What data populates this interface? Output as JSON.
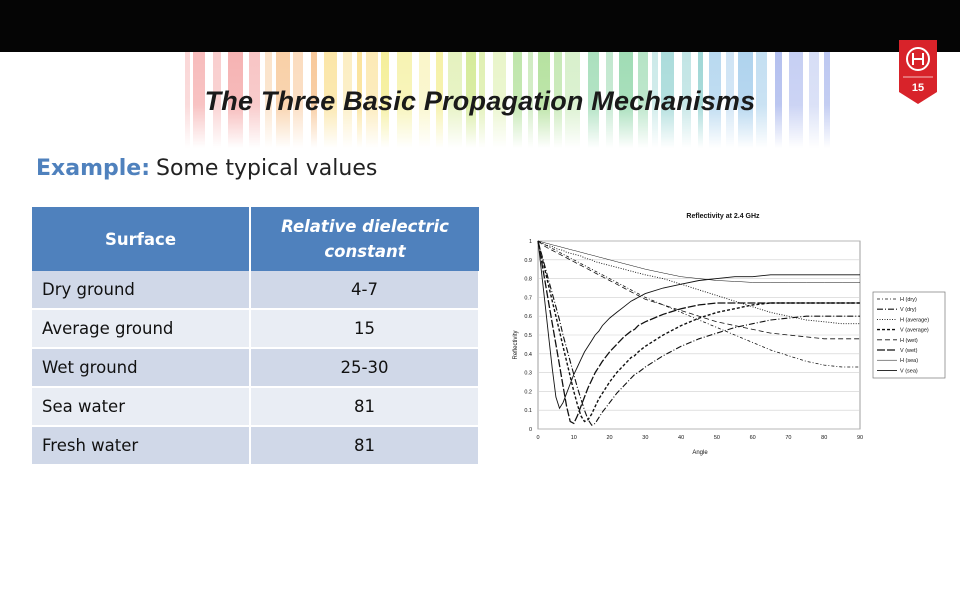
{
  "slide": {
    "title": "The Three Basic Propagation Mechanisms",
    "page_number": "15",
    "subtitle_lead": "Example:",
    "subtitle_text": "Some typical values",
    "accent_color": "#4f81bd",
    "badge_color": "#d8232a"
  },
  "table": {
    "headers": [
      "Surface",
      "Relative dielectric constant"
    ],
    "rows": [
      [
        "Dry ground",
        "4-7"
      ],
      [
        "Average ground",
        "15"
      ],
      [
        "Wet ground",
        "25-30"
      ],
      [
        "Sea water",
        "81"
      ],
      [
        "Fresh water",
        "81"
      ]
    ]
  },
  "chart_data": {
    "type": "line",
    "title": "Reflectivity at 2.4 GHz",
    "xlabel": "Angle",
    "ylabel": "Reflectivity",
    "xlim": [
      0,
      90
    ],
    "ylim": [
      0,
      1
    ],
    "xticks": [
      "0",
      "10",
      "20",
      "30",
      "40",
      "50",
      "60",
      "70",
      "80",
      "90"
    ],
    "yticks": [
      "0",
      "0.1",
      "0.2",
      "0.3",
      "0.4",
      "0.5",
      "0.6",
      "0.7",
      "0.8",
      "0.9",
      "1"
    ],
    "grid": true,
    "legend": "right",
    "x": [
      0,
      1,
      2,
      3,
      4,
      5,
      6,
      7,
      8,
      9,
      10,
      11,
      12,
      13,
      14,
      15,
      16,
      17,
      18,
      20,
      22,
      24,
      26,
      27,
      28,
      30,
      35,
      40,
      45,
      50,
      55,
      60,
      65,
      70,
      75,
      80,
      85,
      90
    ],
    "series": [
      {
        "name": "H (dry)",
        "values": [
          1,
          0.99,
          0.98,
          0.97,
          0.96,
          0.95,
          0.94,
          0.93,
          0.92,
          0.91,
          0.9,
          0.89,
          0.88,
          0.87,
          0.86,
          0.85,
          0.84,
          0.83,
          0.82,
          0.8,
          0.78,
          0.76,
          0.74,
          0.73,
          0.72,
          0.7,
          0.66,
          0.62,
          0.58,
          0.54,
          0.5,
          0.46,
          0.42,
          0.39,
          0.36,
          0.34,
          0.33,
          0.33
        ]
      },
      {
        "name": "V (dry)",
        "values": [
          1,
          0.93,
          0.86,
          0.79,
          0.72,
          0.65,
          0.58,
          0.5,
          0.43,
          0.36,
          0.29,
          0.22,
          0.16,
          0.1,
          0.05,
          0.02,
          0.03,
          0.06,
          0.09,
          0.14,
          0.19,
          0.23,
          0.27,
          0.29,
          0.3,
          0.33,
          0.39,
          0.44,
          0.48,
          0.51,
          0.54,
          0.56,
          0.58,
          0.59,
          0.6,
          0.6,
          0.6,
          0.6
        ]
      },
      {
        "name": "H (average)",
        "values": [
          1,
          0.99,
          0.98,
          0.975,
          0.97,
          0.96,
          0.955,
          0.95,
          0.94,
          0.935,
          0.93,
          0.925,
          0.92,
          0.91,
          0.905,
          0.9,
          0.89,
          0.885,
          0.88,
          0.87,
          0.86,
          0.85,
          0.84,
          0.835,
          0.83,
          0.82,
          0.8,
          0.77,
          0.74,
          0.71,
          0.68,
          0.65,
          0.62,
          0.6,
          0.58,
          0.57,
          0.56,
          0.56
        ]
      },
      {
        "name": "V (average)",
        "values": [
          1,
          0.92,
          0.84,
          0.76,
          0.68,
          0.6,
          0.52,
          0.44,
          0.36,
          0.28,
          0.2,
          0.13,
          0.07,
          0.04,
          0.05,
          0.08,
          0.12,
          0.16,
          0.19,
          0.25,
          0.3,
          0.34,
          0.38,
          0.39,
          0.41,
          0.44,
          0.5,
          0.55,
          0.59,
          0.62,
          0.64,
          0.66,
          0.67,
          0.67,
          0.67,
          0.67,
          0.67,
          0.67
        ]
      },
      {
        "name": "H (wet)",
        "values": [
          1,
          0.985,
          0.97,
          0.96,
          0.95,
          0.94,
          0.93,
          0.92,
          0.91,
          0.9,
          0.89,
          0.88,
          0.87,
          0.86,
          0.85,
          0.84,
          0.83,
          0.82,
          0.81,
          0.79,
          0.77,
          0.75,
          0.73,
          0.72,
          0.71,
          0.69,
          0.66,
          0.63,
          0.6,
          0.57,
          0.55,
          0.53,
          0.51,
          0.5,
          0.49,
          0.48,
          0.48,
          0.48
        ]
      },
      {
        "name": "V (wet)",
        "values": [
          1,
          0.89,
          0.78,
          0.67,
          0.56,
          0.45,
          0.34,
          0.23,
          0.12,
          0.04,
          0.03,
          0.07,
          0.12,
          0.17,
          0.22,
          0.26,
          0.3,
          0.33,
          0.36,
          0.41,
          0.45,
          0.49,
          0.52,
          0.53,
          0.55,
          0.57,
          0.61,
          0.64,
          0.66,
          0.67,
          0.67,
          0.67,
          0.67,
          0.67,
          0.67,
          0.67,
          0.67,
          0.67
        ]
      },
      {
        "name": "H (sea)",
        "values": [
          1,
          0.995,
          0.99,
          0.985,
          0.98,
          0.975,
          0.97,
          0.965,
          0.96,
          0.955,
          0.95,
          0.945,
          0.94,
          0.935,
          0.93,
          0.925,
          0.92,
          0.915,
          0.91,
          0.9,
          0.89,
          0.88,
          0.87,
          0.865,
          0.86,
          0.85,
          0.83,
          0.81,
          0.8,
          0.79,
          0.785,
          0.78,
          0.78,
          0.78,
          0.78,
          0.78,
          0.78,
          0.78
        ]
      },
      {
        "name": "V (sea)",
        "values": [
          1,
          0.83,
          0.66,
          0.49,
          0.32,
          0.17,
          0.11,
          0.14,
          0.19,
          0.24,
          0.29,
          0.33,
          0.37,
          0.41,
          0.44,
          0.47,
          0.5,
          0.52,
          0.55,
          0.59,
          0.62,
          0.65,
          0.68,
          0.69,
          0.7,
          0.72,
          0.75,
          0.77,
          0.79,
          0.8,
          0.81,
          0.81,
          0.82,
          0.82,
          0.82,
          0.82,
          0.82,
          0.82
        ]
      }
    ]
  }
}
